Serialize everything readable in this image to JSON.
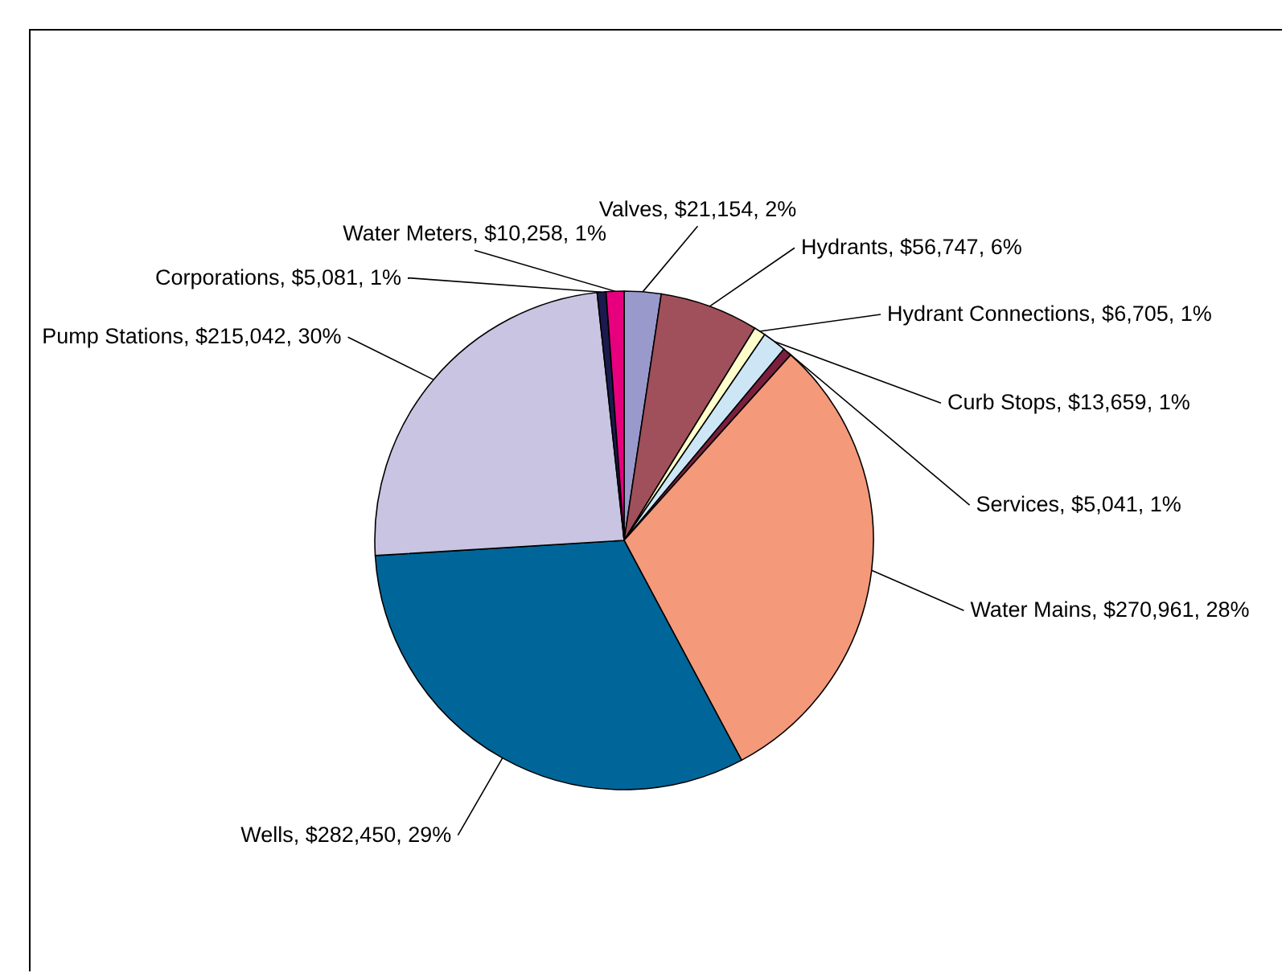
{
  "chart_data": {
    "type": "pie",
    "categories": [
      "Valves",
      "Hydrants",
      "Hydrant Connections",
      "Curb Stops",
      "Services",
      "Water Mains",
      "Wells",
      "Pump Stations",
      "Corporations",
      "Water Meters"
    ],
    "values": [
      21154,
      56747,
      6705,
      13659,
      5041,
      270961,
      282450,
      215042,
      5081,
      10258
    ],
    "colors": [
      "#9999cc",
      "#a0505a",
      "#ffffcc",
      "#cce6f5",
      "#7a1f3d",
      "#f4997a",
      "#006699",
      "#c8c4e2",
      "#1a1a4d",
      "#e6007e"
    ],
    "value_labels": [
      "$21,154, 2%",
      "$56,747, 6%",
      "$6,705, 1%",
      "$13,659, 1%",
      "$5,041, 1%",
      "$270,961, 28%",
      "$282,450, 29%",
      "$215,042, 30%",
      "$5,081, 1%",
      "$10,258, 1%"
    ]
  }
}
